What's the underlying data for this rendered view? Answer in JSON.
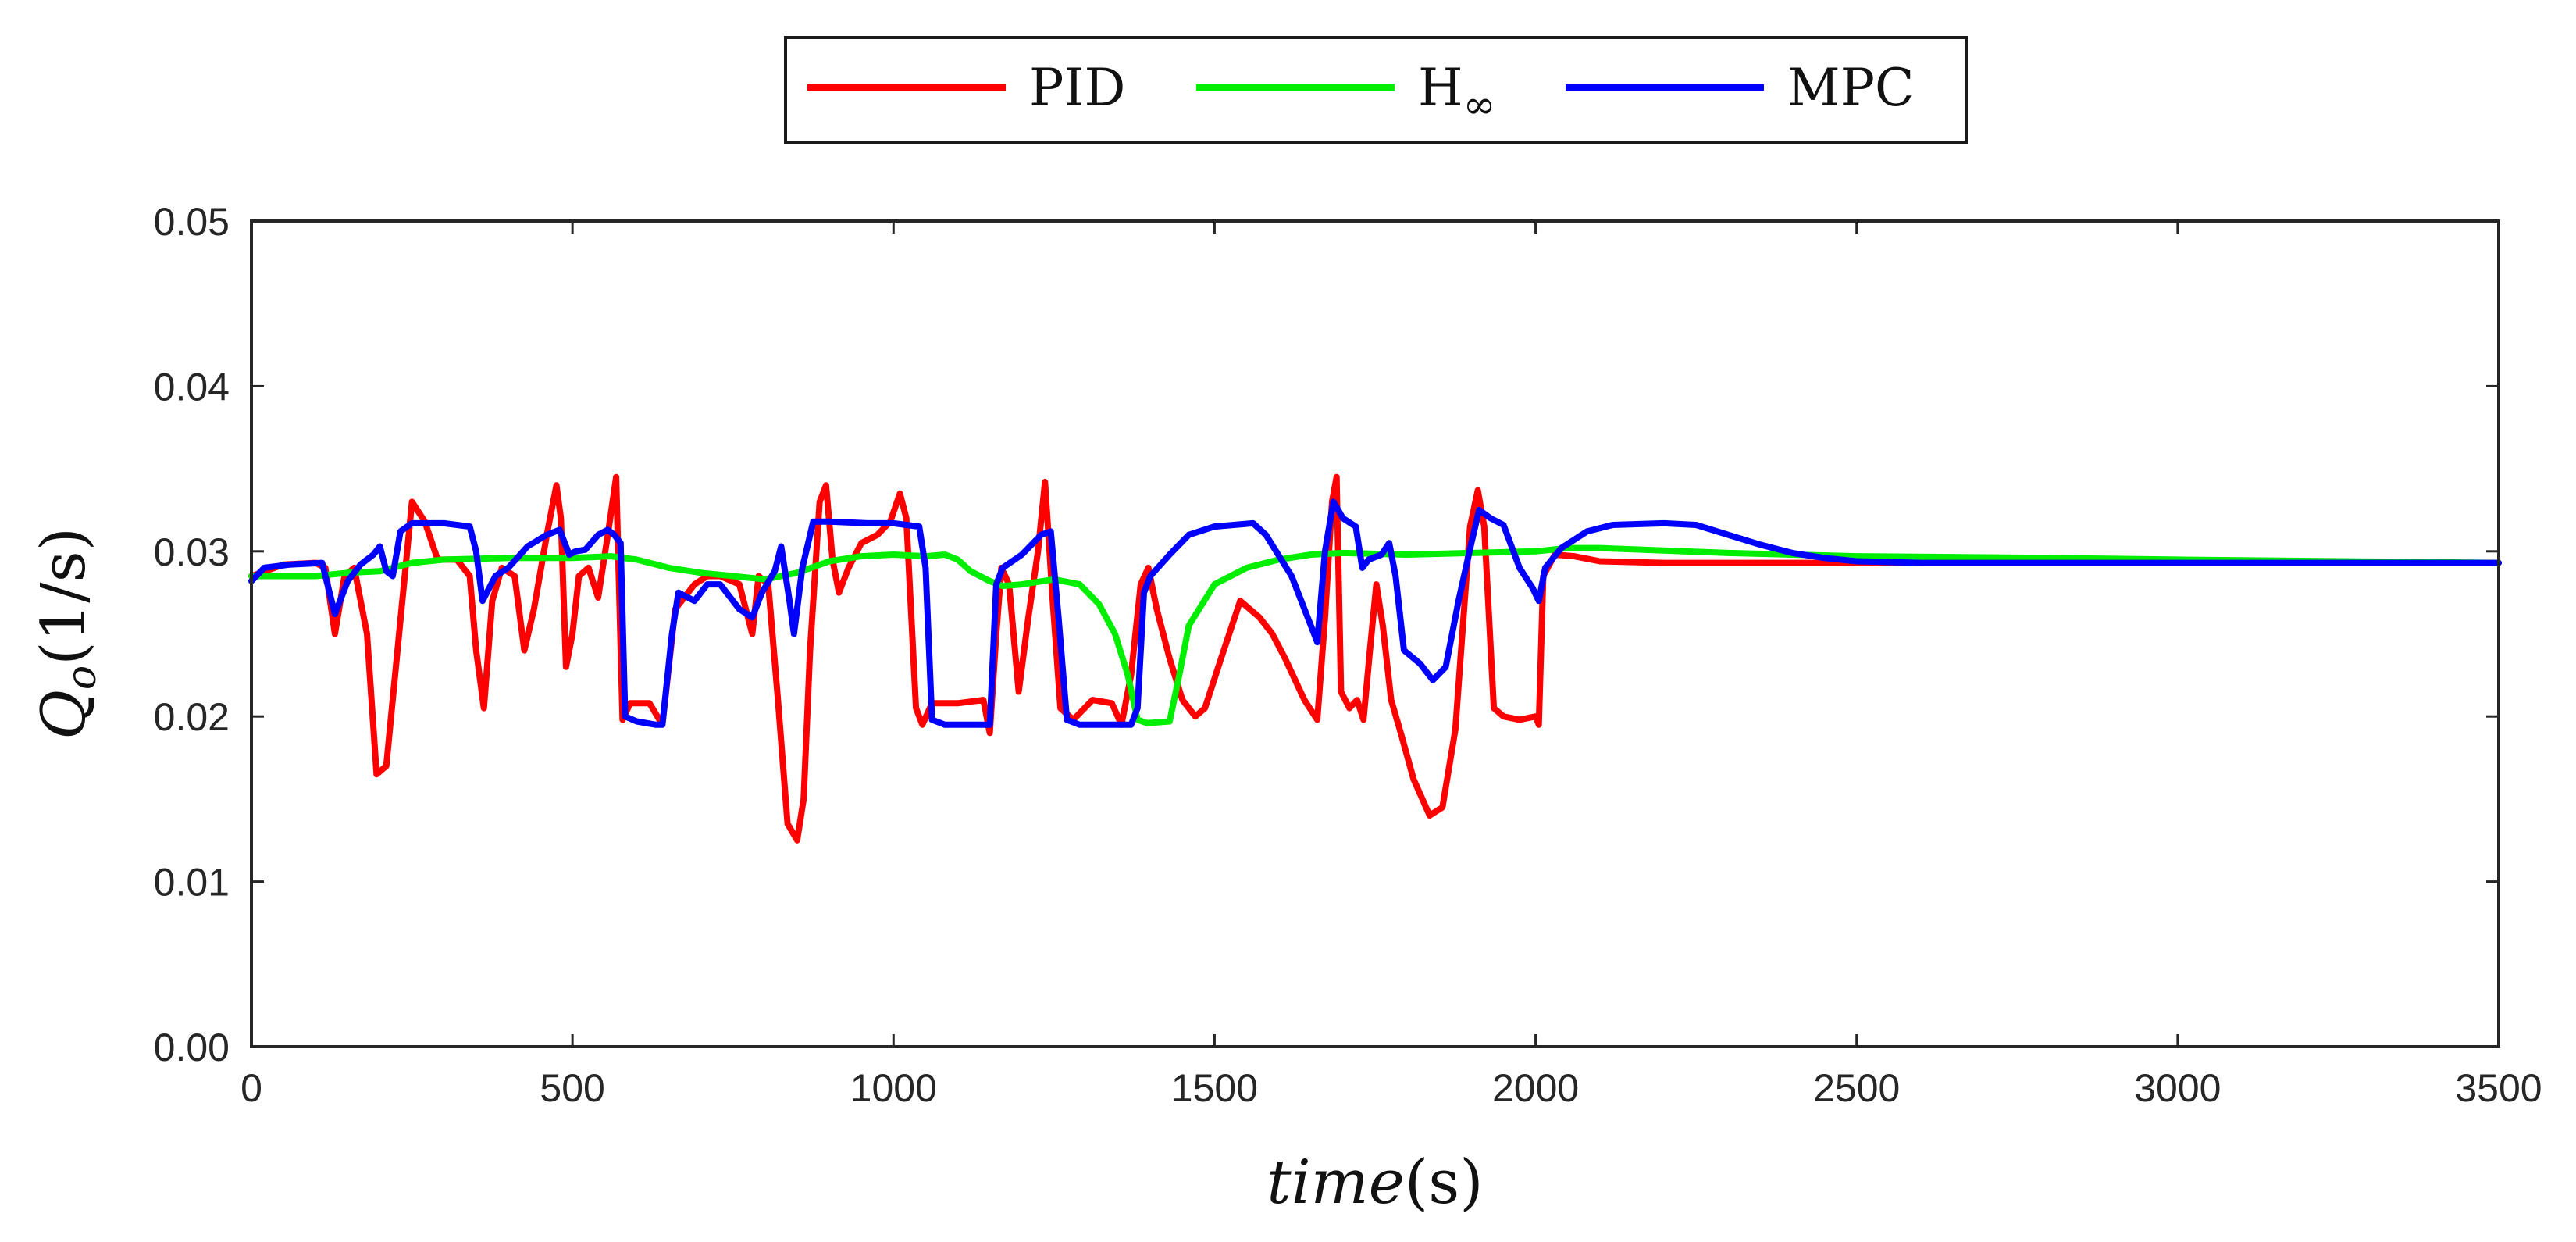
{
  "chart_data": {
    "type": "line",
    "xlabel_italic": "time",
    "xlabel_unit": "(s)",
    "ylabel_main": "Q",
    "ylabel_sub": "o",
    "ylabel_unit": "(1/s)",
    "xlim": [
      0,
      3500
    ],
    "ylim": [
      0,
      0.05
    ],
    "xticks": [
      0,
      500,
      1000,
      1500,
      2000,
      2500,
      3000,
      3500
    ],
    "xtick_labels": [
      "0",
      "500",
      "1000",
      "1500",
      "2000",
      "2500",
      "3000",
      "3500"
    ],
    "yticks": [
      0,
      0.01,
      0.02,
      0.03,
      0.04,
      0.05
    ],
    "ytick_labels": [
      "0.00",
      "0.01",
      "0.02",
      "0.03",
      "0.04",
      "0.05"
    ],
    "grid": false,
    "legend_position": "top-center",
    "series": [
      {
        "name": "PID",
        "legend_main": "PID",
        "legend_sub": "",
        "color": "#ff0000",
        "points": [
          [
            0,
            0.0285
          ],
          [
            50,
            0.0292
          ],
          [
            100,
            0.0293
          ],
          [
            115,
            0.029
          ],
          [
            130,
            0.025
          ],
          [
            145,
            0.0285
          ],
          [
            160,
            0.029
          ],
          [
            180,
            0.025
          ],
          [
            195,
            0.0165
          ],
          [
            210,
            0.017
          ],
          [
            230,
            0.025
          ],
          [
            250,
            0.033
          ],
          [
            270,
            0.0318
          ],
          [
            290,
            0.0295
          ],
          [
            320,
            0.0295
          ],
          [
            340,
            0.0285
          ],
          [
            350,
            0.024
          ],
          [
            362,
            0.0205
          ],
          [
            375,
            0.027
          ],
          [
            390,
            0.029
          ],
          [
            410,
            0.0285
          ],
          [
            425,
            0.024
          ],
          [
            440,
            0.0265
          ],
          [
            460,
            0.031
          ],
          [
            475,
            0.034
          ],
          [
            482,
            0.032
          ],
          [
            490,
            0.023
          ],
          [
            500,
            0.025
          ],
          [
            510,
            0.0285
          ],
          [
            525,
            0.029
          ],
          [
            540,
            0.0272
          ],
          [
            555,
            0.031
          ],
          [
            568,
            0.0345
          ],
          [
            578,
            0.0198
          ],
          [
            590,
            0.0208
          ],
          [
            620,
            0.0208
          ],
          [
            640,
            0.0195
          ],
          [
            660,
            0.0265
          ],
          [
            690,
            0.028
          ],
          [
            710,
            0.0285
          ],
          [
            730,
            0.0285
          ],
          [
            760,
            0.028
          ],
          [
            780,
            0.025
          ],
          [
            790,
            0.0285
          ],
          [
            805,
            0.028
          ],
          [
            820,
            0.021
          ],
          [
            835,
            0.0135
          ],
          [
            850,
            0.0125
          ],
          [
            860,
            0.015
          ],
          [
            870,
            0.024
          ],
          [
            885,
            0.033
          ],
          [
            895,
            0.034
          ],
          [
            905,
            0.0295
          ],
          [
            915,
            0.0275
          ],
          [
            930,
            0.029
          ],
          [
            950,
            0.0305
          ],
          [
            975,
            0.031
          ],
          [
            995,
            0.0318
          ],
          [
            1010,
            0.0335
          ],
          [
            1020,
            0.032
          ],
          [
            1035,
            0.0205
          ],
          [
            1045,
            0.0195
          ],
          [
            1060,
            0.0208
          ],
          [
            1100,
            0.0208
          ],
          [
            1140,
            0.021
          ],
          [
            1150,
            0.019
          ],
          [
            1160,
            0.025
          ],
          [
            1168,
            0.029
          ],
          [
            1180,
            0.028
          ],
          [
            1195,
            0.0215
          ],
          [
            1210,
            0.026
          ],
          [
            1225,
            0.03
          ],
          [
            1236,
            0.0342
          ],
          [
            1248,
            0.027
          ],
          [
            1260,
            0.0205
          ],
          [
            1280,
            0.0198
          ],
          [
            1310,
            0.021
          ],
          [
            1340,
            0.0208
          ],
          [
            1355,
            0.0195
          ],
          [
            1370,
            0.0225
          ],
          [
            1385,
            0.028
          ],
          [
            1397,
            0.029
          ],
          [
            1410,
            0.0265
          ],
          [
            1430,
            0.0235
          ],
          [
            1450,
            0.021
          ],
          [
            1470,
            0.02
          ],
          [
            1485,
            0.0205
          ],
          [
            1510,
            0.0235
          ],
          [
            1540,
            0.027
          ],
          [
            1570,
            0.026
          ],
          [
            1590,
            0.025
          ],
          [
            1610,
            0.0235
          ],
          [
            1640,
            0.021
          ],
          [
            1660,
            0.0198
          ],
          [
            1672,
            0.026
          ],
          [
            1683,
            0.033
          ],
          [
            1690,
            0.0345
          ],
          [
            1697,
            0.0215
          ],
          [
            1710,
            0.0205
          ],
          [
            1722,
            0.021
          ],
          [
            1732,
            0.0198
          ],
          [
            1742,
            0.024
          ],
          [
            1752,
            0.028
          ],
          [
            1762,
            0.0255
          ],
          [
            1775,
            0.021
          ],
          [
            1790,
            0.019
          ],
          [
            1810,
            0.0162
          ],
          [
            1835,
            0.014
          ],
          [
            1855,
            0.0145
          ],
          [
            1875,
            0.0192
          ],
          [
            1898,
            0.0315
          ],
          [
            1910,
            0.0337
          ],
          [
            1920,
            0.0315
          ],
          [
            1935,
            0.0205
          ],
          [
            1950,
            0.02
          ],
          [
            1975,
            0.0198
          ],
          [
            2000,
            0.02
          ],
          [
            2005,
            0.0195
          ],
          [
            2012,
            0.0285
          ],
          [
            2030,
            0.0298
          ],
          [
            2060,
            0.0297
          ],
          [
            2100,
            0.0294
          ],
          [
            2200,
            0.0293
          ],
          [
            2500,
            0.0293
          ],
          [
            3000,
            0.0293
          ],
          [
            3500,
            0.0293
          ]
        ]
      },
      {
        "name": "H∞",
        "legend_main": "H",
        "legend_sub": "∞",
        "color": "#00ee00",
        "points": [
          [
            0,
            0.0285
          ],
          [
            100,
            0.0285
          ],
          [
            150,
            0.0287
          ],
          [
            200,
            0.0288
          ],
          [
            250,
            0.0293
          ],
          [
            300,
            0.0295
          ],
          [
            400,
            0.0296
          ],
          [
            500,
            0.0296
          ],
          [
            560,
            0.0297
          ],
          [
            600,
            0.0295
          ],
          [
            650,
            0.029
          ],
          [
            700,
            0.0287
          ],
          [
            750,
            0.0285
          ],
          [
            800,
            0.0283
          ],
          [
            850,
            0.0287
          ],
          [
            900,
            0.0294
          ],
          [
            950,
            0.0297
          ],
          [
            1000,
            0.0298
          ],
          [
            1050,
            0.0297
          ],
          [
            1080,
            0.0298
          ],
          [
            1100,
            0.0295
          ],
          [
            1120,
            0.0288
          ],
          [
            1150,
            0.0282
          ],
          [
            1170,
            0.0279
          ],
          [
            1200,
            0.028
          ],
          [
            1250,
            0.0283
          ],
          [
            1290,
            0.028
          ],
          [
            1320,
            0.0268
          ],
          [
            1345,
            0.025
          ],
          [
            1365,
            0.0225
          ],
          [
            1380,
            0.0198
          ],
          [
            1395,
            0.0196
          ],
          [
            1430,
            0.0197
          ],
          [
            1445,
            0.0225
          ],
          [
            1460,
            0.0255
          ],
          [
            1500,
            0.028
          ],
          [
            1550,
            0.029
          ],
          [
            1600,
            0.0295
          ],
          [
            1650,
            0.0298
          ],
          [
            1700,
            0.0299
          ],
          [
            1800,
            0.0298
          ],
          [
            1900,
            0.0299
          ],
          [
            2000,
            0.03
          ],
          [
            2050,
            0.0302
          ],
          [
            2100,
            0.0302
          ],
          [
            2300,
            0.0299
          ],
          [
            2500,
            0.0297
          ],
          [
            2800,
            0.0296
          ],
          [
            3000,
            0.0295
          ],
          [
            3500,
            0.0293
          ]
        ]
      },
      {
        "name": "MPC",
        "legend_main": "MPC",
        "legend_sub": "",
        "color": "#0000ff",
        "points": [
          [
            0,
            0.0282
          ],
          [
            20,
            0.029
          ],
          [
            60,
            0.0292
          ],
          [
            110,
            0.0293
          ],
          [
            130,
            0.0262
          ],
          [
            150,
            0.0282
          ],
          [
            170,
            0.0292
          ],
          [
            190,
            0.0298
          ],
          [
            200,
            0.0303
          ],
          [
            210,
            0.0288
          ],
          [
            220,
            0.0285
          ],
          [
            232,
            0.0312
          ],
          [
            250,
            0.0317
          ],
          [
            300,
            0.0317
          ],
          [
            340,
            0.0315
          ],
          [
            350,
            0.03
          ],
          [
            360,
            0.027
          ],
          [
            380,
            0.0285
          ],
          [
            400,
            0.029
          ],
          [
            430,
            0.0303
          ],
          [
            460,
            0.031
          ],
          [
            480,
            0.0313
          ],
          [
            495,
            0.0298
          ],
          [
            505,
            0.03
          ],
          [
            520,
            0.0301
          ],
          [
            540,
            0.031
          ],
          [
            555,
            0.0313
          ],
          [
            565,
            0.031
          ],
          [
            575,
            0.0305
          ],
          [
            582,
            0.02
          ],
          [
            600,
            0.0197
          ],
          [
            630,
            0.0195
          ],
          [
            640,
            0.0195
          ],
          [
            655,
            0.025
          ],
          [
            665,
            0.0275
          ],
          [
            690,
            0.027
          ],
          [
            710,
            0.028
          ],
          [
            730,
            0.028
          ],
          [
            760,
            0.0265
          ],
          [
            780,
            0.026
          ],
          [
            795,
            0.0275
          ],
          [
            815,
            0.0288
          ],
          [
            825,
            0.0303
          ],
          [
            838,
            0.027
          ],
          [
            845,
            0.025
          ],
          [
            858,
            0.029
          ],
          [
            875,
            0.0318
          ],
          [
            900,
            0.0318
          ],
          [
            960,
            0.0317
          ],
          [
            1000,
            0.0317
          ],
          [
            1040,
            0.0315
          ],
          [
            1050,
            0.029
          ],
          [
            1060,
            0.0198
          ],
          [
            1080,
            0.0195
          ],
          [
            1150,
            0.0195
          ],
          [
            1160,
            0.028
          ],
          [
            1170,
            0.029
          ],
          [
            1200,
            0.0298
          ],
          [
            1230,
            0.031
          ],
          [
            1245,
            0.0312
          ],
          [
            1257,
            0.026
          ],
          [
            1270,
            0.0198
          ],
          [
            1290,
            0.0195
          ],
          [
            1370,
            0.0195
          ],
          [
            1380,
            0.0205
          ],
          [
            1390,
            0.0275
          ],
          [
            1400,
            0.0285
          ],
          [
            1430,
            0.0298
          ],
          [
            1460,
            0.031
          ],
          [
            1500,
            0.0315
          ],
          [
            1530,
            0.0316
          ],
          [
            1560,
            0.0317
          ],
          [
            1580,
            0.031
          ],
          [
            1620,
            0.0285
          ],
          [
            1650,
            0.0255
          ],
          [
            1660,
            0.0245
          ],
          [
            1672,
            0.03
          ],
          [
            1685,
            0.033
          ],
          [
            1700,
            0.032
          ],
          [
            1720,
            0.0315
          ],
          [
            1730,
            0.029
          ],
          [
            1740,
            0.0295
          ],
          [
            1760,
            0.0298
          ],
          [
            1772,
            0.0305
          ],
          [
            1782,
            0.0285
          ],
          [
            1795,
            0.024
          ],
          [
            1820,
            0.0232
          ],
          [
            1840,
            0.0222
          ],
          [
            1860,
            0.023
          ],
          [
            1880,
            0.027
          ],
          [
            1900,
            0.0305
          ],
          [
            1912,
            0.0325
          ],
          [
            1930,
            0.032
          ],
          [
            1950,
            0.0316
          ],
          [
            1975,
            0.029
          ],
          [
            1995,
            0.0278
          ],
          [
            2005,
            0.027
          ],
          [
            2015,
            0.029
          ],
          [
            2040,
            0.0302
          ],
          [
            2080,
            0.0312
          ],
          [
            2120,
            0.0316
          ],
          [
            2200,
            0.0317
          ],
          [
            2250,
            0.0316
          ],
          [
            2300,
            0.031
          ],
          [
            2350,
            0.0304
          ],
          [
            2400,
            0.0299
          ],
          [
            2450,
            0.0296
          ],
          [
            2500,
            0.0294
          ],
          [
            2600,
            0.0293
          ],
          [
            3000,
            0.0293
          ],
          [
            3500,
            0.0293
          ]
        ]
      }
    ]
  }
}
